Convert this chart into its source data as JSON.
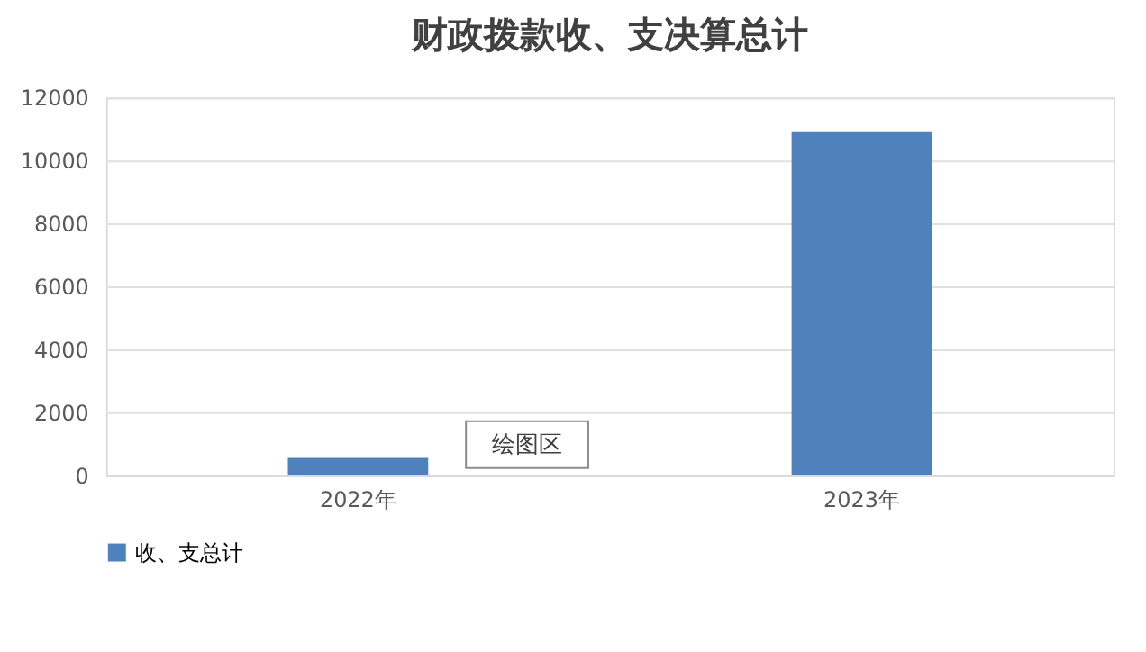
{
  "chart_data": {
    "type": "bar",
    "title": "财政拨款收、支决算总计",
    "categories": [
      "2022年",
      "2023年"
    ],
    "series": [
      {
        "name": "收、支总计",
        "color": "#4f81bd",
        "values": [
          550,
          10900
        ]
      }
    ],
    "ylim": [
      0,
      12000
    ],
    "yticks": [
      0,
      2000,
      4000,
      6000,
      8000,
      10000,
      12000
    ],
    "grid": "y",
    "legend": "bottom",
    "annotations": [
      "绘图区"
    ]
  }
}
